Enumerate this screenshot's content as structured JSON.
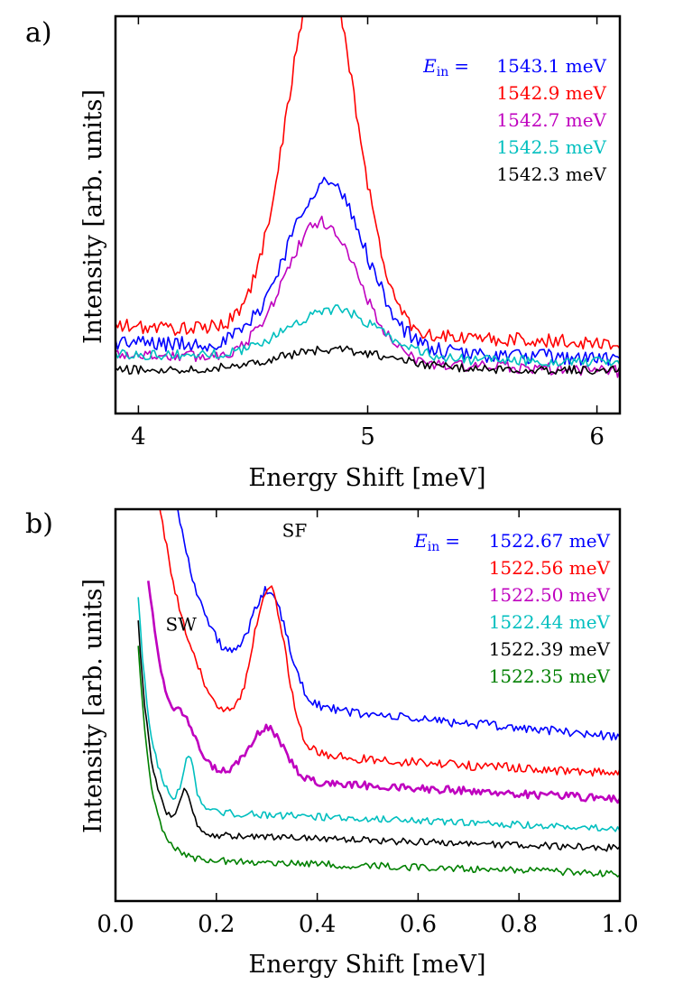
{
  "chart_data": [
    {
      "type": "line",
      "panel_label": "a)",
      "xlabel": "Energy Shift [meV]",
      "ylabel": "Intensity [arb. units]",
      "xlim": [
        3.9,
        6.1
      ],
      "ylim": [
        0,
        1
      ],
      "xticks": [
        4,
        5,
        6
      ],
      "xtick_labels": [
        "4",
        "5",
        "6"
      ],
      "legend_prefix_symbol": "E",
      "legend_prefix_subscript": "in",
      "legend_prefix_equals": "=",
      "legend_position": "top-right",
      "series": [
        {
          "name": "1543.1 meV",
          "color": "#0000ff",
          "shape": "peak",
          "base": 0.18,
          "amp": 0.42,
          "center": 4.82,
          "width": 0.17,
          "slope": -0.02,
          "noise": 0.02
        },
        {
          "name": "1542.9 meV",
          "color": "#ff0000",
          "shape": "peak",
          "base": 0.22,
          "amp": 0.93,
          "center": 4.8,
          "width": 0.15,
          "slope": -0.02,
          "noise": 0.018
        },
        {
          "name": "1542.7 meV",
          "color": "#bf00bf",
          "shape": "peak",
          "base": 0.15,
          "amp": 0.35,
          "center": 4.8,
          "width": 0.16,
          "slope": -0.02,
          "noise": 0.015
        },
        {
          "name": "1542.5 meV",
          "color": "#00bfbf",
          "shape": "peak",
          "base": 0.15,
          "amp": 0.12,
          "center": 4.85,
          "width": 0.2,
          "slope": -0.01,
          "noise": 0.013
        },
        {
          "name": "1542.3 meV",
          "color": "#000000",
          "shape": "peak",
          "base": 0.11,
          "amp": 0.05,
          "center": 4.85,
          "width": 0.25,
          "slope": 0.0,
          "noise": 0.011
        }
      ]
    },
    {
      "type": "line",
      "panel_label": "b)",
      "xlabel": "Energy Shift [meV]",
      "ylabel": "Intensity [arb. units]",
      "xlim": [
        0.0,
        1.0
      ],
      "ylim": [
        0,
        1
      ],
      "xticks": [
        0.0,
        0.2,
        0.4,
        0.6,
        0.8,
        1.0
      ],
      "xtick_labels": [
        "0.0",
        "0.2",
        "0.4",
        "0.6",
        "0.8",
        "1.0"
      ],
      "legend_prefix_symbol": "E",
      "legend_prefix_subscript": "in",
      "legend_prefix_equals": "=",
      "legend_position": "top-right",
      "annotations": [
        {
          "text": "SF",
          "x": 0.355,
          "y": 0.93
        },
        {
          "text": "SW",
          "x": 0.13,
          "y": 0.69
        }
      ],
      "series": [
        {
          "name": "1522.67 meV",
          "color": "#0000ff",
          "shape": "decay",
          "start": 0.095,
          "level": 0.53,
          "slope": -0.11,
          "decay_amp": 0.72,
          "decay_tau": 0.07,
          "peaks": [
            {
              "center": 0.305,
              "amp": 0.26,
              "width": 0.035
            }
          ],
          "noise": 0.012,
          "lw": 1.6
        },
        {
          "name": "1522.56 meV",
          "color": "#ff0000",
          "shape": "decay",
          "start": 0.085,
          "level": 0.395,
          "slope": -0.07,
          "decay_amp": 0.65,
          "decay_tau": 0.07,
          "peaks": [
            {
              "center": 0.305,
              "amp": 0.4,
              "width": 0.032
            }
          ],
          "noise": 0.012,
          "lw": 1.6
        },
        {
          "name": "1522.50 meV",
          "color": "#bf00bf",
          "shape": "decay",
          "start": 0.065,
          "level": 0.33,
          "slope": -0.07,
          "decay_amp": 0.5,
          "decay_tau": 0.04,
          "peaks": [
            {
              "center": 0.14,
              "amp": 0.07,
              "width": 0.02
            },
            {
              "center": 0.3,
              "amp": 0.13,
              "width": 0.035
            }
          ],
          "noise": 0.01,
          "lw": 2.6
        },
        {
          "name": "1522.44 meV",
          "color": "#00bfbf",
          "shape": "decay",
          "start": 0.045,
          "level": 0.235,
          "slope": -0.05,
          "decay_amp": 0.55,
          "decay_tau": 0.025,
          "peaks": [
            {
              "center": 0.145,
              "amp": 0.13,
              "width": 0.012
            }
          ],
          "noise": 0.009,
          "lw": 1.6
        },
        {
          "name": "1522.39 meV",
          "color": "#000000",
          "shape": "decay",
          "start": 0.045,
          "level": 0.175,
          "slope": -0.04,
          "decay_amp": 0.55,
          "decay_tau": 0.025,
          "peaks": [
            {
              "center": 0.14,
              "amp": 0.1,
              "width": 0.012
            }
          ],
          "noise": 0.009,
          "lw": 1.6
        },
        {
          "name": "1522.35 meV",
          "color": "#008000",
          "shape": "decay",
          "start": 0.045,
          "level": 0.11,
          "slope": -0.04,
          "decay_amp": 0.55,
          "decay_tau": 0.025,
          "peaks": [],
          "noise": 0.009,
          "lw": 1.6
        }
      ]
    }
  ]
}
